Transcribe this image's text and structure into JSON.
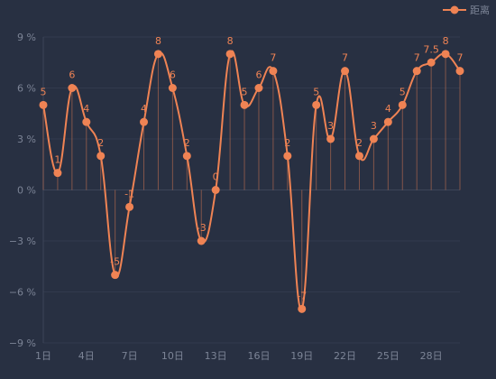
{
  "colors": {
    "background": "#283042",
    "series": "#ef8354",
    "axis_text": "#7c8496",
    "grid": "#323a4d",
    "axis_line": "#3d4558"
  },
  "chart_data": {
    "type": "line",
    "smooth": true,
    "grid": true,
    "legend_position": "top-right",
    "x": [
      "1日",
      "2日",
      "3日",
      "4日",
      "5日",
      "6日",
      "7日",
      "8日",
      "9日",
      "10日",
      "11日",
      "12日",
      "13日",
      "14日",
      "15日",
      "16日",
      "17日",
      "18日",
      "19日",
      "20日",
      "21日",
      "22日",
      "23日",
      "24日",
      "25日",
      "26日",
      "27日",
      "28日",
      "29日",
      "30日"
    ],
    "x_tick_labels": [
      "1日",
      "4日",
      "7日",
      "10日",
      "13日",
      "16日",
      "19日",
      "22日",
      "25日",
      "28日"
    ],
    "y_ticks": [
      -9,
      -6,
      -3,
      0,
      3,
      6,
      9
    ],
    "y_unit": "%",
    "ylim": [
      -9,
      9
    ],
    "series": [
      {
        "name": "距离",
        "values": [
          5,
          1,
          6,
          4,
          2,
          -5,
          -1,
          4,
          8,
          6,
          2,
          -3,
          0,
          8,
          5,
          6,
          7,
          2,
          -7,
          5,
          3,
          7,
          2,
          3,
          4,
          5,
          7,
          7.5,
          8,
          7
        ],
        "labels": [
          "5",
          "1",
          "6",
          "4",
          "2",
          "-5",
          "-1",
          "4",
          "8",
          "6",
          "2",
          "-3",
          "0",
          "8",
          "5",
          "6",
          "7",
          "2",
          "-7",
          "5",
          "3",
          "7",
          "2",
          "3",
          "4",
          "5",
          "7",
          "7.5",
          "8",
          "7"
        ]
      }
    ]
  }
}
